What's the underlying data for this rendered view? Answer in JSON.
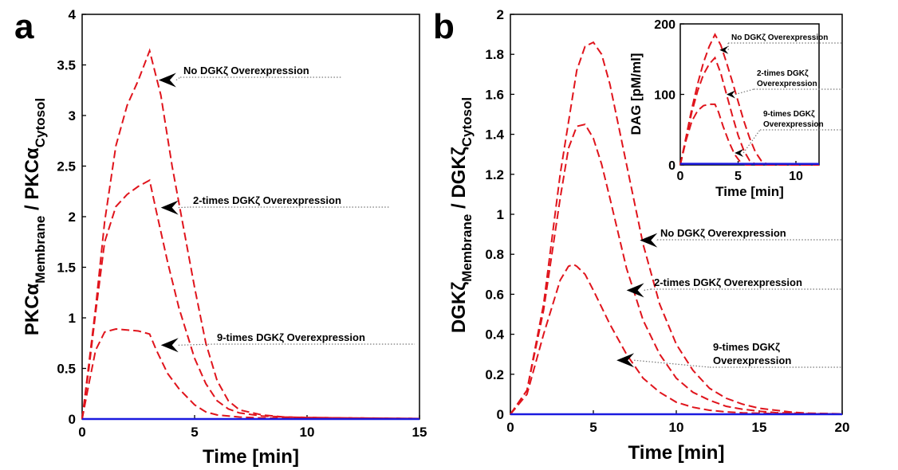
{
  "chart_data": [
    {
      "id": "a",
      "panel_label": "a",
      "type": "line",
      "ylabel_parts": {
        "base": "PKCα",
        "sub1": "Membrane",
        "mid": "/ PKCα",
        "sub2": "Cytosol"
      },
      "xlabel": "Time [min]",
      "xlim": [
        0,
        15
      ],
      "ylim": [
        0,
        4
      ],
      "xticks": [
        0,
        5,
        10,
        15
      ],
      "yticks": [
        0,
        0.5,
        1,
        1.5,
        2,
        2.5,
        3,
        3.5,
        4
      ],
      "series": [
        {
          "id": "none",
          "color": "#e0141c",
          "style": "dashed",
          "x": [
            0,
            0.3,
            0.6,
            1,
            1.5,
            2,
            2.5,
            3,
            3.5,
            4,
            4.5,
            5,
            5.5,
            6,
            6.5,
            7,
            8,
            9,
            10,
            12,
            15
          ],
          "y": [
            0,
            0.55,
            1.1,
            1.95,
            2.7,
            3.1,
            3.35,
            3.64,
            3.2,
            2.5,
            1.9,
            1.3,
            0.75,
            0.38,
            0.18,
            0.09,
            0.04,
            0.02,
            0.015,
            0.01,
            0.005
          ]
        },
        {
          "id": "x2",
          "color": "#e0141c",
          "style": "dashed",
          "x": [
            0,
            0.3,
            0.6,
            1,
            1.5,
            2,
            2.5,
            3,
            3.3,
            3.8,
            4.3,
            5,
            5.5,
            6,
            6.5,
            7,
            8,
            9,
            10,
            12,
            15
          ],
          "y": [
            0,
            0.5,
            1.05,
            1.75,
            2.1,
            2.22,
            2.3,
            2.36,
            2.05,
            1.55,
            1.1,
            0.6,
            0.35,
            0.18,
            0.1,
            0.06,
            0.03,
            0.02,
            0.015,
            0.01,
            0.005
          ]
        },
        {
          "id": "x9",
          "color": "#e0141c",
          "style": "dashed",
          "x": [
            0,
            0.3,
            0.6,
            1,
            1.5,
            2,
            2.5,
            3,
            3.3,
            3.8,
            4.3,
            5,
            5.5,
            6,
            7,
            8,
            10,
            15
          ],
          "y": [
            0,
            0.35,
            0.68,
            0.86,
            0.89,
            0.88,
            0.87,
            0.84,
            0.68,
            0.45,
            0.3,
            0.14,
            0.07,
            0.04,
            0.02,
            0.01,
            0.005,
            0.003
          ]
        },
        {
          "id": "baseline",
          "color": "#1a1adf",
          "style": "solid",
          "x": [
            0,
            15
          ],
          "y": [
            0,
            0
          ]
        }
      ],
      "annotations": [
        {
          "text": "No DGKζ Overexpression",
          "target": [
            3.4,
            3.35
          ]
        },
        {
          "text": "2-times DGKζ Overexpression",
          "target": [
            3.5,
            2.09
          ]
        },
        {
          "text": "9-times DGKζ Overexpression",
          "target": [
            3.5,
            0.73
          ]
        }
      ]
    },
    {
      "id": "b",
      "panel_label": "b",
      "type": "line",
      "ylabel_parts": {
        "base": "DGKζ",
        "sub1": "Membrane",
        "mid": "/ DGKζ",
        "sub2": "Cytosol"
      },
      "xlabel": "Time [min]",
      "xlim": [
        0,
        20
      ],
      "ylim": [
        0,
        2
      ],
      "xticks": [
        0,
        5,
        10,
        15,
        20
      ],
      "yticks": [
        0,
        0.2,
        0.4,
        0.6,
        0.8,
        1,
        1.2,
        1.4,
        1.6,
        1.8,
        2
      ],
      "series": [
        {
          "id": "none",
          "color": "#e0141c",
          "style": "dashed",
          "x": [
            0,
            1,
            2,
            3,
            4,
            4.5,
            5,
            5.5,
            6,
            7,
            8,
            9,
            10,
            11,
            12,
            13,
            14,
            15,
            16,
            17,
            18,
            20
          ],
          "y": [
            0,
            0.12,
            0.55,
            1.2,
            1.72,
            1.84,
            1.86,
            1.8,
            1.65,
            1.25,
            0.85,
            0.55,
            0.35,
            0.22,
            0.13,
            0.08,
            0.05,
            0.03,
            0.02,
            0.01,
            0.005,
            0.002
          ]
        },
        {
          "id": "x2",
          "color": "#e0141c",
          "style": "dashed",
          "x": [
            0,
            1,
            2,
            3,
            3.5,
            4,
            4.5,
            5,
            5.5,
            6,
            7,
            8,
            9,
            10,
            11,
            12,
            13,
            14,
            15,
            16,
            18,
            20
          ],
          "y": [
            0,
            0.12,
            0.52,
            1.08,
            1.33,
            1.44,
            1.45,
            1.38,
            1.25,
            1.08,
            0.73,
            0.47,
            0.3,
            0.18,
            0.11,
            0.07,
            0.04,
            0.025,
            0.015,
            0.008,
            0.003,
            0.001
          ]
        },
        {
          "id": "x9",
          "color": "#e0141c",
          "style": "dashed",
          "x": [
            0,
            1,
            2,
            3,
            3.5,
            3.8,
            4,
            4.5,
            5,
            6,
            7,
            8,
            9,
            10,
            11,
            12,
            13,
            14,
            16,
            20
          ],
          "y": [
            0,
            0.1,
            0.4,
            0.67,
            0.74,
            0.75,
            0.74,
            0.7,
            0.62,
            0.45,
            0.3,
            0.18,
            0.11,
            0.06,
            0.035,
            0.02,
            0.012,
            0.007,
            0.003,
            0.001
          ]
        },
        {
          "id": "baseline",
          "color": "#1a1adf",
          "style": "solid",
          "x": [
            0,
            20
          ],
          "y": [
            0,
            0
          ]
        }
      ],
      "annotations": [
        {
          "text": "No DGKζ Overexpression",
          "target": [
            7.8,
            0.87
          ]
        },
        {
          "text": "2-times DGKζ Overexpression",
          "target": [
            7.0,
            0.62
          ]
        },
        {
          "text": "9-times DGKζ",
          "text2": "Overexpression",
          "target": [
            6.4,
            0.27
          ]
        }
      ]
    },
    {
      "id": "inset",
      "type": "line",
      "ylabel": "DAG [pM/ml]",
      "xlabel": "Time [min]",
      "xlim": [
        0,
        12
      ],
      "ylim": [
        0,
        200
      ],
      "xticks": [
        0,
        5,
        10
      ],
      "yticks": [
        0,
        100,
        200
      ],
      "series": [
        {
          "id": "none",
          "color": "#e0141c",
          "style": "dashed",
          "x": [
            0,
            0.5,
            1,
            1.5,
            2,
            2.5,
            3,
            3.5,
            4,
            4.5,
            5,
            5.5,
            6,
            6.5,
            7,
            7.5,
            12
          ],
          "y": [
            0,
            40,
            80,
            115,
            145,
            168,
            185,
            170,
            145,
            118,
            90,
            62,
            38,
            18,
            6,
            1,
            0
          ]
        },
        {
          "id": "x2",
          "color": "#e0141c",
          "style": "dashed",
          "x": [
            0,
            0.5,
            1,
            1.5,
            2,
            2.5,
            3,
            3.5,
            4,
            4.5,
            5,
            5.5,
            6,
            6.5,
            12
          ],
          "y": [
            0,
            38,
            75,
            105,
            128,
            143,
            152,
            130,
            100,
            70,
            42,
            20,
            6,
            1,
            0
          ]
        },
        {
          "id": "x9",
          "color": "#e0141c",
          "style": "dashed",
          "x": [
            0,
            0.5,
            1,
            1.5,
            2,
            2.5,
            3,
            3.3,
            3.7,
            4.2,
            4.7,
            5.2,
            5.7,
            12
          ],
          "y": [
            0,
            35,
            62,
            77,
            84,
            86,
            86,
            75,
            55,
            33,
            15,
            4,
            0,
            0
          ]
        },
        {
          "id": "baseline",
          "color": "#1a1adf",
          "style": "solid",
          "x": [
            0,
            12
          ],
          "y": [
            1.5,
            1.5
          ]
        }
      ],
      "annotations": [
        {
          "text": "No DGKζ Overexpression",
          "target": [
            3.4,
            163
          ]
        },
        {
          "text": "2-times DGKζ",
          "text2": "Overexpression",
          "target": [
            4.0,
            100
          ]
        },
        {
          "text": "9-times DGKζ",
          "text2": "Overexpression",
          "target": [
            4.7,
            17
          ]
        }
      ]
    }
  ]
}
